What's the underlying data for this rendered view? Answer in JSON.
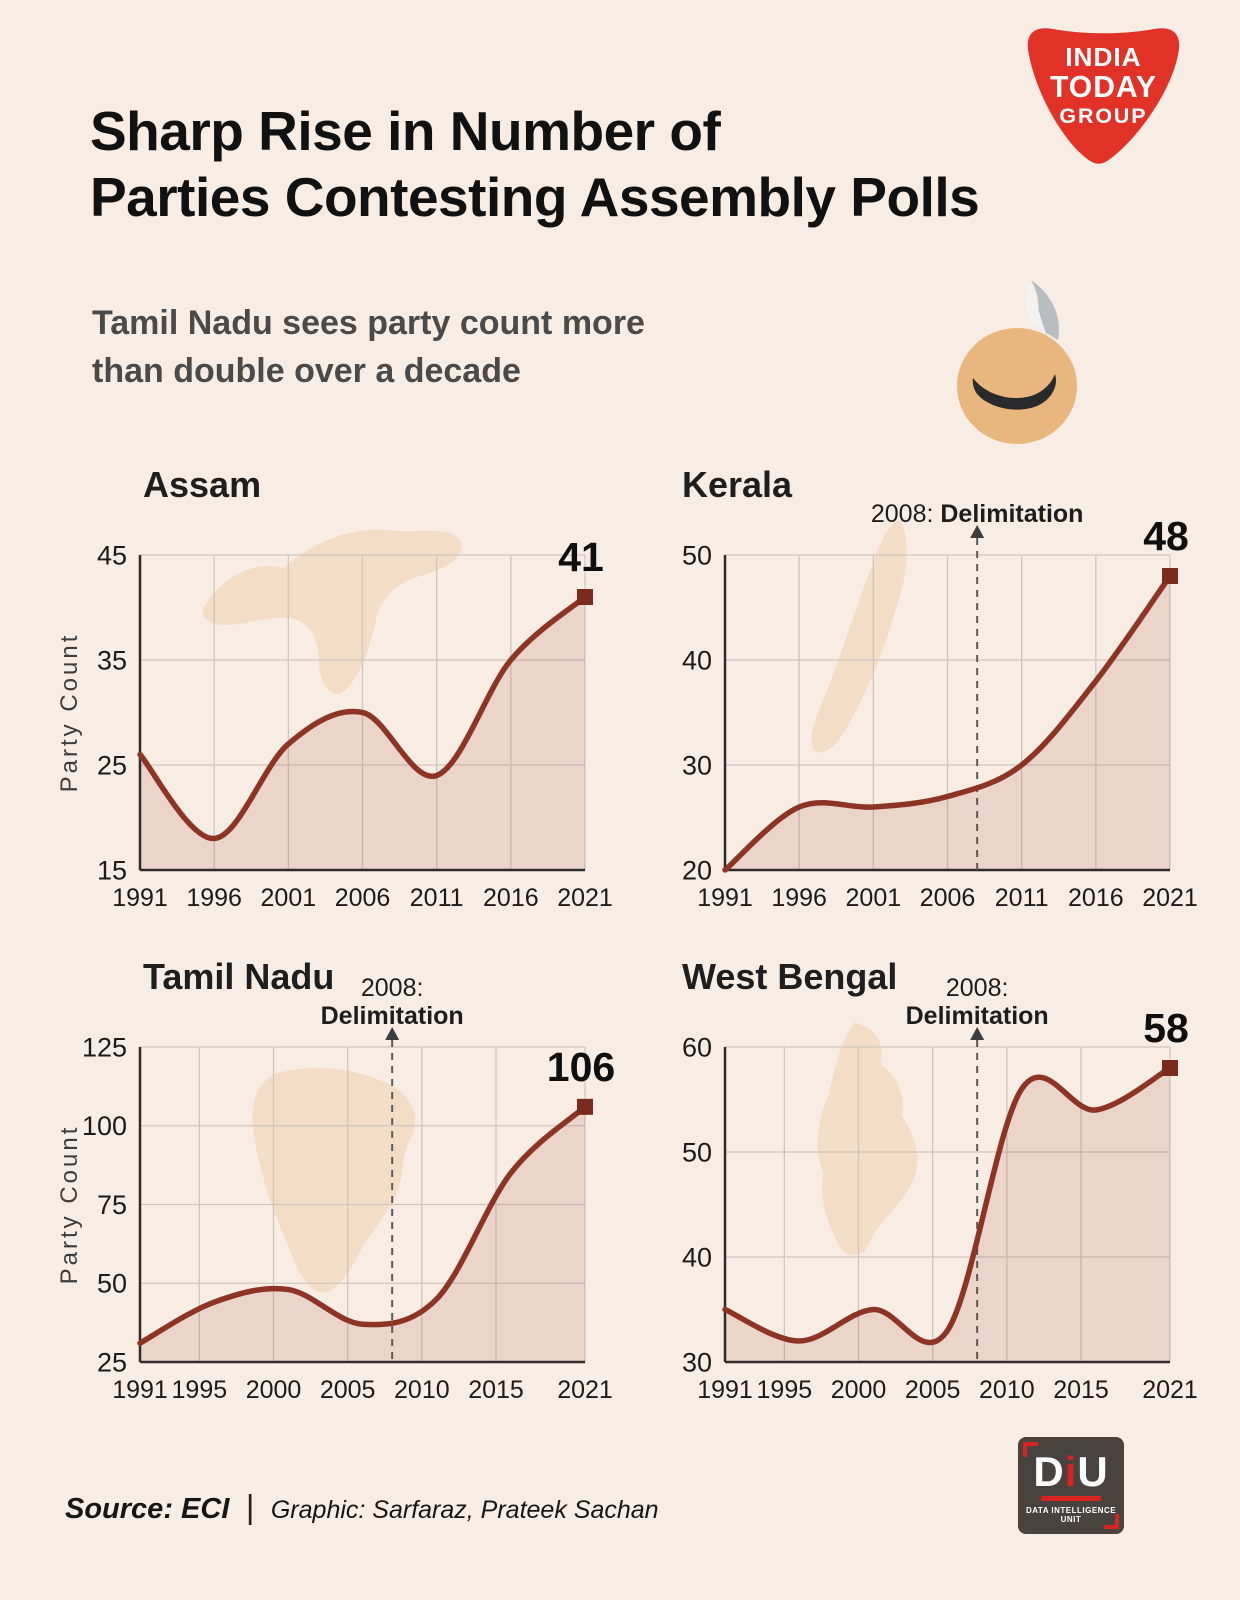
{
  "header": {
    "title_line1": "Sharp Rise in Number of",
    "title_line2": "Parties Contesting Assembly Polls",
    "subtitle_line1": "Tamil Nadu sees party count more",
    "subtitle_line2": "than double over a decade",
    "logo_line1": "INDIA",
    "logo_line2": "TODAY",
    "logo_line3": "GROUP"
  },
  "footer": {
    "source": "Source: ECI",
    "divider": "|",
    "credit": "Graphic: Sarfaraz, Prateek Sachan",
    "diu_d": "D",
    "diu_i": "i",
    "diu_u": "U",
    "diu_sub": "DATA INTELLIGENCE UNIT"
  },
  "colors": {
    "background": "#f8ede4",
    "line": "#8e3425",
    "marker": "#7a2b1e",
    "fill": "rgba(146,55,42,0.13)",
    "grid": "#cfc6bf",
    "axis": "#2b2b2b",
    "dashed": "#5a5a5a",
    "map": "#f3d9c2",
    "brand_red": "#e23228"
  },
  "chart_data": [
    {
      "type": "area",
      "title": "Assam",
      "ylabel": "Party Count",
      "x": [
        1991,
        1996,
        2001,
        2006,
        2011,
        2016,
        2021
      ],
      "values": [
        26,
        18,
        27,
        30,
        24,
        35,
        41
      ],
      "x_ticks": [
        1991,
        1996,
        2001,
        2006,
        2011,
        2016,
        2021
      ],
      "y_ticks": [
        15,
        25,
        35,
        45
      ],
      "xlim": [
        1991,
        2021
      ],
      "ylim": [
        15,
        45
      ],
      "end_label": "41",
      "annotation": null
    },
    {
      "type": "area",
      "title": "Kerala",
      "ylabel": "",
      "x": [
        1991,
        1996,
        2001,
        2006,
        2011,
        2016,
        2021
      ],
      "values": [
        20,
        26,
        26,
        27,
        30,
        38,
        48
      ],
      "x_ticks": [
        1991,
        1996,
        2001,
        2006,
        2011,
        2016,
        2021
      ],
      "y_ticks": [
        20,
        30,
        40,
        50
      ],
      "xlim": [
        1991,
        2021
      ],
      "ylim": [
        20,
        50
      ],
      "end_label": "48",
      "annotation": {
        "x": 2008,
        "prefix": "2008:",
        "label": "Delimitation",
        "layout": "one-line"
      }
    },
    {
      "type": "area",
      "title": "Tamil Nadu",
      "ylabel": "Party Count",
      "x": [
        1991,
        1996,
        2001,
        2006,
        2011,
        2016,
        2021
      ],
      "values": [
        31,
        44,
        48,
        37,
        45,
        85,
        106
      ],
      "x_ticks": [
        1991,
        1995,
        2000,
        2005,
        2010,
        2015,
        2021
      ],
      "y_ticks": [
        25,
        50,
        75,
        100,
        125
      ],
      "xlim": [
        1991,
        2021
      ],
      "ylim": [
        25,
        125
      ],
      "end_label": "106",
      "annotation": {
        "x": 2008,
        "prefix": "2008:",
        "label": "Delimitation",
        "layout": "two-line"
      }
    },
    {
      "type": "area",
      "title": "West Bengal",
      "ylabel": "",
      "x": [
        1991,
        1996,
        2001,
        2006,
        2011,
        2016,
        2021
      ],
      "values": [
        35,
        32,
        35,
        33,
        56,
        54,
        58
      ],
      "x_ticks": [
        1991,
        1995,
        2000,
        2005,
        2010,
        2015,
        2021
      ],
      "y_ticks": [
        30,
        40,
        50,
        60
      ],
      "xlim": [
        1991,
        2021
      ],
      "ylim": [
        30,
        60
      ],
      "end_label": "58",
      "annotation": {
        "x": 2008,
        "prefix": "2008:",
        "label": "Delimitation",
        "layout": "two-line"
      }
    }
  ]
}
